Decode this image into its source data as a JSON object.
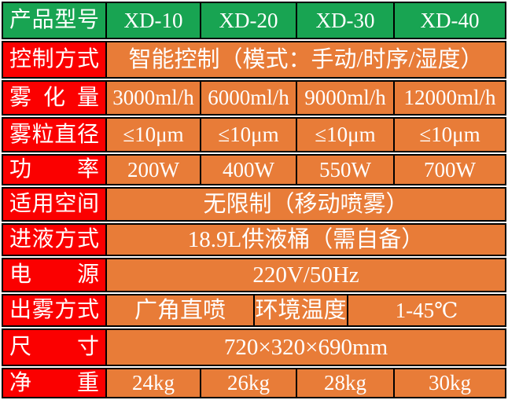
{
  "colors": {
    "header_green": "#18a452",
    "label_red": "#fb0000",
    "cell_orange": "#e87c38",
    "border_black": "#000000",
    "text_white": "#ffffff"
  },
  "rows": [
    {
      "label": "产品型号",
      "cells": [
        "XD-10",
        "XD-20",
        "XD-30",
        "XD-40"
      ]
    },
    {
      "label": "控制方式",
      "cells": [
        "智能控制（模式：手动/时序/湿度）"
      ]
    },
    {
      "label": "雾化量",
      "cells": [
        "3000ml/h",
        "6000ml/h",
        "9000ml/h",
        "12000ml/h"
      ]
    },
    {
      "label": "雾粒直径",
      "cells": [
        "≤10μm",
        "≤10μm",
        "≤10μm",
        "≤10μm"
      ]
    },
    {
      "label": "功率",
      "cells": [
        "200W",
        "400W",
        "550W",
        "700W"
      ]
    },
    {
      "label": "适用空间",
      "cells": [
        "无限制（移动喷雾）"
      ]
    },
    {
      "label": "进液方式",
      "cells": [
        "18.9L供液桶（需自备）"
      ]
    },
    {
      "label": "电源",
      "cells": [
        "220V/50Hz"
      ]
    },
    {
      "label": "出雾方式",
      "cells": [
        "广角直喷",
        "环境温度",
        "1-45℃"
      ]
    },
    {
      "label": "尺寸",
      "cells": [
        "720×320×690mm"
      ]
    },
    {
      "label": "净重",
      "cells": [
        "24kg",
        "26kg",
        "28kg",
        "30kg"
      ]
    }
  ]
}
